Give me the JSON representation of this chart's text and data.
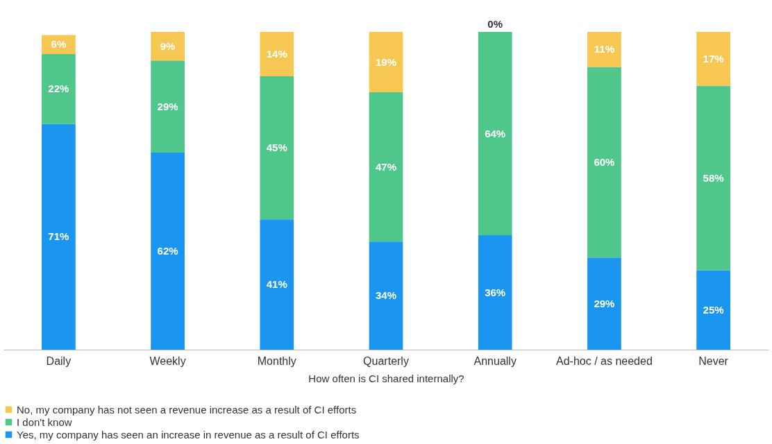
{
  "chart_data": {
    "type": "bar",
    "stacked": true,
    "xlabel": "How often is CI shared internally?",
    "categories": [
      "Daily",
      "Weekly",
      "Monthly",
      "Quarterly",
      "Annually",
      "Ad-hoc / as needed",
      "Never"
    ],
    "series": [
      {
        "name": "Yes, my company has seen an increase in revenue as a result of CI efforts",
        "color": "#1a96f0",
        "values": [
          71,
          62,
          41,
          34,
          36,
          29,
          25
        ],
        "value_labels": [
          "71%",
          "62%",
          "41%",
          "34%",
          "36%",
          "29%",
          "25%"
        ]
      },
      {
        "name": "I don't know",
        "color": "#4fc78a",
        "values": [
          22,
          29,
          45,
          47,
          64,
          60,
          58
        ],
        "value_labels": [
          "22%",
          "29%",
          "45%",
          "47%",
          "64%",
          "60%",
          "58%"
        ]
      },
      {
        "name": "No, my company has not seen a revenue increase as a result of CI efforts",
        "color": "#f7c754",
        "values": [
          6,
          9,
          14,
          19,
          0,
          11,
          17
        ],
        "value_labels": [
          "6%",
          "9%",
          "14%",
          "19%",
          "0%",
          "11%",
          "17%"
        ]
      }
    ],
    "grid": false,
    "legend": "bottom"
  }
}
